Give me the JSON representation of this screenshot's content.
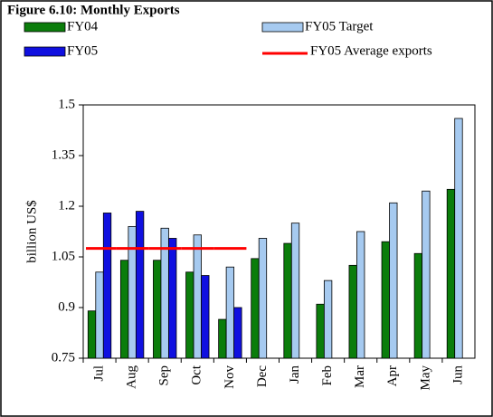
{
  "chart_data": {
    "type": "bar",
    "title": "Figure 6.10: Monthly Exports",
    "y_label": "billion US$",
    "categories": [
      "Jul",
      "Aug",
      "Sep",
      "Oct",
      "Nov",
      "Dec",
      "Jan",
      "Feb",
      "Mar",
      "Apr",
      "May",
      "Jun"
    ],
    "series": [
      {
        "name": "FY04",
        "color": "#0b7d0b",
        "type": "bar",
        "values": [
          0.89,
          1.04,
          1.04,
          1.005,
          0.865,
          1.045,
          1.09,
          0.91,
          1.025,
          1.095,
          1.06,
          1.25
        ]
      },
      {
        "name": "FY05 Target",
        "color": "#a6caf0",
        "type": "bar",
        "values": [
          1.005,
          1.14,
          1.135,
          1.115,
          1.02,
          1.105,
          1.15,
          0.98,
          1.125,
          1.21,
          1.245,
          1.46
        ]
      },
      {
        "name": "FY05",
        "color": "#1010e0",
        "type": "bar",
        "values": [
          1.18,
          1.185,
          1.105,
          0.995,
          0.9,
          null,
          null,
          null,
          null,
          null,
          null,
          null
        ]
      },
      {
        "name": "FY05 Average exports",
        "color": "#ff0000",
        "type": "line",
        "values": [
          1.075,
          1.075,
          1.075,
          1.075,
          1.075,
          null,
          null,
          null,
          null,
          null,
          null,
          null
        ]
      }
    ],
    "ylim": [
      0.75,
      1.5
    ],
    "yticks": [
      0.75,
      0.9,
      1.05,
      1.2,
      1.35,
      1.5
    ],
    "grid": false
  }
}
